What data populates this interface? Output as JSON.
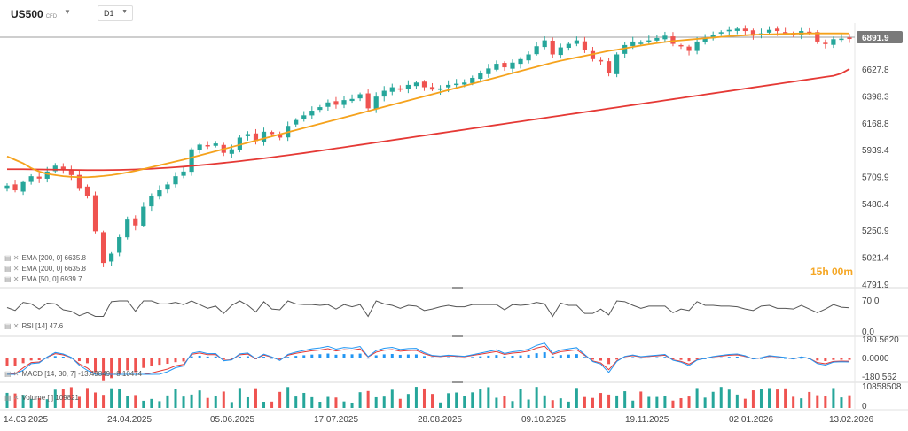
{
  "header": {
    "symbol": "US500",
    "symbol_tag": "CFD",
    "timeframe": "D1",
    "dropdown_icon": "chevron-down-icon"
  },
  "timer": "15h 00m",
  "colors": {
    "up": "#26a69a",
    "down": "#ef5350",
    "ema50": "#f5a21c",
    "ema200": "#e53935",
    "ema200b": "#b71c1c",
    "rsi": "#555555",
    "macd": "#2196f3",
    "signal": "#e53935",
    "price_tag": "#7a7a7a",
    "volume_up": "#26a69a",
    "volume_down": "#ef5350"
  },
  "indicators": {
    "ema1": "EMA [200, 0] 6635.8",
    "ema2": "EMA [200, 0] 6635.8",
    "ema3": "EMA [50, 0] 6939.7",
    "rsi": "RSI [14] 47.6",
    "macd": "MACD [14, 30, 7] -13.49849, -8.10474",
    "volume": "Volume [ ] 109821"
  },
  "chart_data": {
    "type": "candlestick",
    "price_axis": [
      "6627.8",
      "6398.3",
      "6168.8",
      "5939.4",
      "5709.9",
      "5480.4",
      "5250.9",
      "5021.4",
      "4791.9"
    ],
    "current_price": "6891.9",
    "rsi_axis": [
      "70.0",
      "0.0"
    ],
    "macd_axis": [
      "180.5620",
      "0.0000",
      "-180.562"
    ],
    "volume_axis": [
      "10858508",
      "0"
    ],
    "dates": [
      "14.03.2025",
      "24.04.2025",
      "05.06.2025",
      "17.07.2025",
      "28.08.2025",
      "09.10.2025",
      "19.11.2025",
      "02.01.2026",
      "13.02.2026"
    ],
    "closes": [
      5640,
      5600,
      5670,
      5720,
      5700,
      5760,
      5810,
      5780,
      5730,
      5620,
      5550,
      5250,
      4980,
      5060,
      5200,
      5350,
      5300,
      5460,
      5550,
      5600,
      5650,
      5720,
      5760,
      5950,
      5990,
      5980,
      6000,
      5920,
      5950,
      6050,
      6080,
      6020,
      6100,
      6080,
      6050,
      6150,
      6200,
      6240,
      6280,
      6310,
      6350,
      6330,
      6370,
      6380,
      6420,
      6300,
      6400,
      6450,
      6480,
      6470,
      6500,
      6520,
      6480,
      6460,
      6470,
      6500,
      6510,
      6520,
      6560,
      6600,
      6640,
      6680,
      6650,
      6690,
      6720,
      6760,
      6830,
      6880,
      6760,
      6820,
      6850,
      6880,
      6800,
      6720,
      6700,
      6600,
      6760,
      6840,
      6870,
      6860,
      6880,
      6900,
      6920,
      6850,
      6830,
      6790,
      6870,
      6900,
      6930,
      6950,
      6970,
      6980,
      6960,
      6920,
      6940,
      6970,
      6960,
      6950,
      6930,
      6960,
      6940,
      6870,
      6850,
      6890,
      6895,
      6891.9
    ],
    "ema50": [
      5890,
      5860,
      5830,
      5790,
      5760,
      5740,
      5730,
      5720,
      5715,
      5712,
      5712,
      5716,
      5722,
      5730,
      5740,
      5752,
      5766,
      5782,
      5798,
      5814,
      5830,
      5846,
      5862,
      5880,
      5898,
      5916,
      5934,
      5952,
      5970,
      5988,
      6006,
      6024,
      6042,
      6060,
      6078,
      6096,
      6114,
      6132,
      6150,
      6168,
      6186,
      6204,
      6222,
      6240,
      6258,
      6276,
      6294,
      6312,
      6330,
      6348,
      6366,
      6384,
      6402,
      6420,
      6438,
      6456,
      6474,
      6492,
      6510,
      6528,
      6546,
      6564,
      6582,
      6600,
      6618,
      6636,
      6654,
      6672,
      6690,
      6706,
      6720,
      6734,
      6748,
      6762,
      6776,
      6790,
      6800,
      6812,
      6824,
      6836,
      6846,
      6856,
      6866,
      6874,
      6880,
      6886,
      6892,
      6898,
      6904,
      6910,
      6916,
      6920,
      6924,
      6928,
      6930,
      6932,
      6934,
      6936,
      6938,
      6939,
      6940,
      6940,
      6940,
      6940,
      6940,
      6939.7
    ],
    "ema200": [
      5780,
      5780,
      5780,
      5779,
      5778,
      5777,
      5776,
      5775,
      5774,
      5773,
      5772,
      5772,
      5772,
      5773,
      5774,
      5776,
      5778,
      5781,
      5784,
      5788,
      5792,
      5797,
      5802,
      5808,
      5814,
      5820,
      5827,
      5834,
      5841,
      5849,
      5857,
      5865,
      5873,
      5882,
      5891,
      5900,
      5909,
      5918,
      5928,
      5938,
      5948,
      5958,
      5968,
      5978,
      5988,
      5998,
      6008,
      6018,
      6028,
      6038,
      6048,
      6058,
      6068,
      6078,
      6088,
      6098,
      6108,
      6118,
      6128,
      6138,
      6148,
      6158,
      6168,
      6178,
      6188,
      6198,
      6208,
      6218,
      6228,
      6238,
      6248,
      6258,
      6268,
      6278,
      6288,
      6298,
      6308,
      6318,
      6328,
      6338,
      6348,
      6358,
      6368,
      6378,
      6388,
      6398,
      6408,
      6418,
      6428,
      6438,
      6448,
      6458,
      6468,
      6478,
      6488,
      6498,
      6508,
      6518,
      6528,
      6538,
      6548,
      6558,
      6568,
      6578,
      6598,
      6635.8
    ]
  }
}
